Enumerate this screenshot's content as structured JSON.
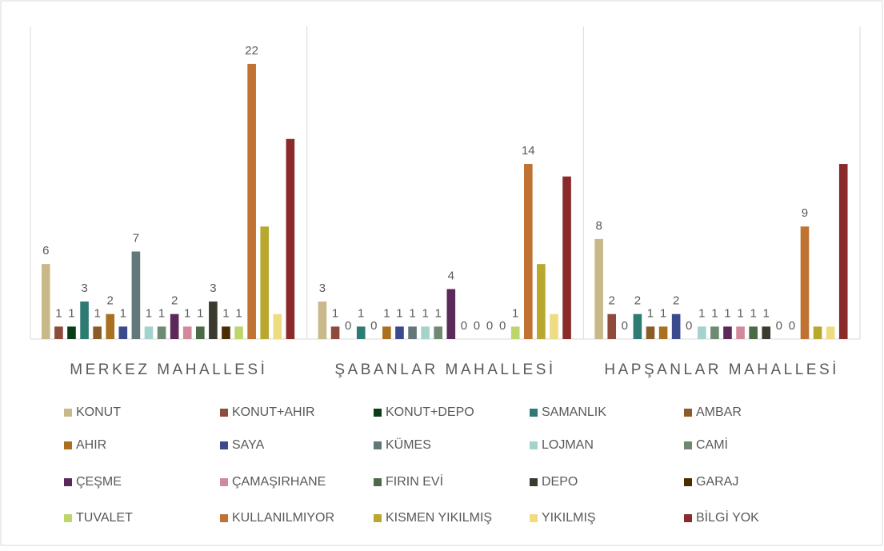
{
  "chart_data": {
    "type": "bar",
    "categories": [
      "MERKEZ MAHALLESİ",
      "ŞABANLAR MAHALLESİ",
      "HAPŞANLAR MAHALLESİ"
    ],
    "ylim": [
      0,
      25
    ],
    "series": [
      {
        "name": "KONUT",
        "color": "#c9b88a",
        "values": [
          6,
          3,
          8
        ],
        "data_labels": true
      },
      {
        "name": "KONUT+AHIR",
        "color": "#8e4b3c",
        "values": [
          1,
          1,
          2
        ],
        "data_labels": true
      },
      {
        "name": "KONUT+DEPO",
        "color": "#0a3d17",
        "values": [
          1,
          0,
          0
        ],
        "data_labels": true
      },
      {
        "name": "SAMANLIK",
        "color": "#2e7b74",
        "values": [
          3,
          1,
          2
        ],
        "data_labels": true
      },
      {
        "name": "AMBAR",
        "color": "#8a5c2a",
        "values": [
          1,
          0,
          1
        ],
        "data_labels": true
      },
      {
        "name": "AHIR",
        "color": "#a8701f",
        "values": [
          2,
          1,
          1
        ],
        "data_labels": true
      },
      {
        "name": "SAYA",
        "color": "#3b4a8c",
        "values": [
          1,
          1,
          2
        ],
        "data_labels": true
      },
      {
        "name": "KÜMES",
        "color": "#62777a",
        "values": [
          7,
          1,
          0
        ],
        "data_labels": true
      },
      {
        "name": "LOJMAN",
        "color": "#a3d3cc",
        "values": [
          1,
          1,
          1
        ],
        "data_labels": true
      },
      {
        "name": "CAMİ",
        "color": "#6f8a72",
        "values": [
          1,
          1,
          1
        ],
        "data_labels": true
      },
      {
        "name": "ÇEŞME",
        "color": "#5c2a5a",
        "values": [
          2,
          4,
          1
        ],
        "data_labels": true
      },
      {
        "name": "ÇAMAŞIRHANE",
        "color": "#d18a9c",
        "values": [
          1,
          0,
          1
        ],
        "data_labels": true
      },
      {
        "name": "FIRIN EVİ",
        "color": "#4a6b45",
        "values": [
          1,
          0,
          1
        ],
        "data_labels": true
      },
      {
        "name": "DEPO",
        "color": "#3a3a2e",
        "values": [
          3,
          0,
          1
        ],
        "data_labels": true
      },
      {
        "name": "GARAJ",
        "color": "#4a2c00",
        "values": [
          1,
          0,
          0
        ],
        "data_labels": true
      },
      {
        "name": "TUVALET",
        "color": "#bcd66a",
        "values": [
          1,
          1,
          0
        ],
        "data_labels": true
      },
      {
        "name": "KULLANILMIYOR",
        "color": "#c07232",
        "values": [
          22,
          14,
          9
        ],
        "data_labels": true
      },
      {
        "name": "KISMEN YIKILMIŞ",
        "color": "#b8a82e",
        "values": [
          9,
          6,
          1
        ],
        "data_labels": false
      },
      {
        "name": "YIKILMIŞ",
        "color": "#eedc82",
        "values": [
          2,
          2,
          1
        ],
        "data_labels": false
      },
      {
        "name": "BİLGİ YOK",
        "color": "#8b2a2a",
        "values": [
          16,
          13,
          14
        ],
        "data_labels": false
      }
    ]
  }
}
